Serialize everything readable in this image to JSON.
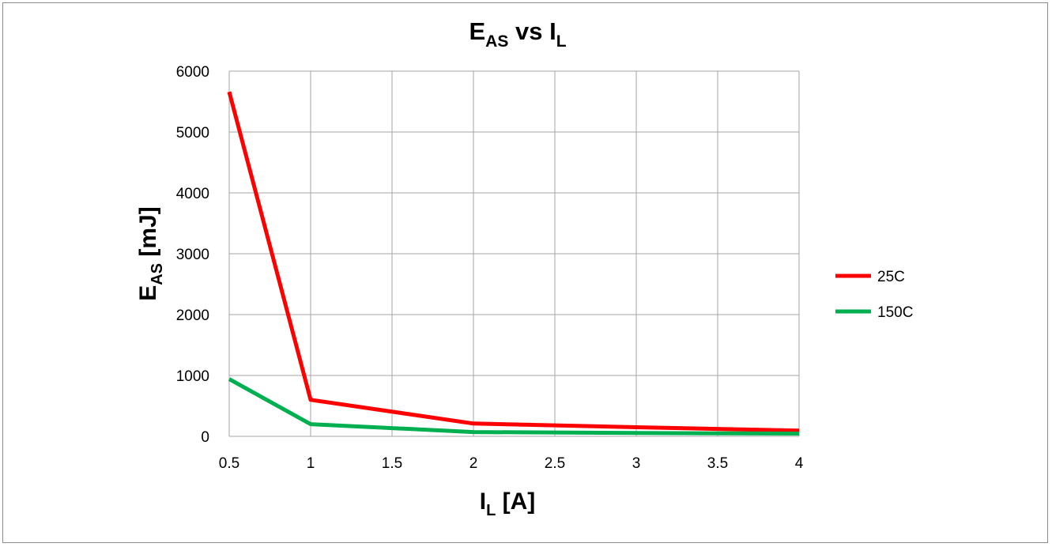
{
  "chart_data": {
    "type": "line",
    "title": {
      "main": "E",
      "sub": "AS",
      "mid": " vs I",
      "sub2": "L"
    },
    "xlabel": {
      "main": "I",
      "sub": "L",
      "rest": " [A]"
    },
    "ylabel": {
      "main": "E",
      "sub": "AS",
      "rest": " [mJ]"
    },
    "x_ticks": [
      "0.5",
      "1",
      "1.5",
      "2",
      "2.5",
      "3",
      "3.5",
      "4"
    ],
    "y_ticks": [
      "0",
      "1000",
      "2000",
      "3000",
      "4000",
      "5000",
      "6000"
    ],
    "xlim": [
      0.5,
      4
    ],
    "ylim": [
      0,
      6000
    ],
    "grid": true,
    "legend_position": "right",
    "series": [
      {
        "name": "25C",
        "color": "#ff0000",
        "x": [
          0.5,
          1,
          2,
          3,
          4
        ],
        "y": [
          5660,
          600,
          210,
          150,
          95
        ]
      },
      {
        "name": "150C",
        "color": "#00b050",
        "x": [
          0.5,
          1,
          2,
          3,
          4
        ],
        "y": [
          940,
          200,
          70,
          55,
          45
        ]
      }
    ]
  }
}
